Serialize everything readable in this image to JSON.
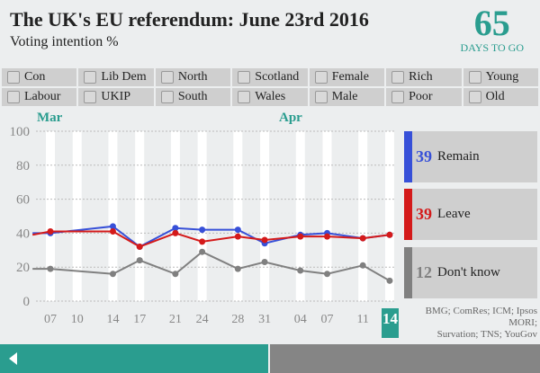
{
  "header": {
    "title": "The UK's EU referendum: June 23rd 2016",
    "subtitle": "Voting intention %",
    "days_number": "65",
    "days_label": "DAYS TO GO"
  },
  "filters": [
    "Con",
    "Lib Dem",
    "North",
    "Scotland",
    "Female",
    "Rich",
    "Young",
    "Labour",
    "UKIP",
    "South",
    "Wales",
    "Male",
    "Poor",
    "Old"
  ],
  "colors": {
    "accent": "#2a9d8f",
    "remain": "#3750d8",
    "leave": "#d41a1a",
    "dont_know": "#808080"
  },
  "chart_data": {
    "type": "line",
    "months": [
      {
        "label": "Mar",
        "date": "2016-03-07"
      },
      {
        "label": "Apr",
        "date": "2016-04-01"
      }
    ],
    "x_ticks": [
      {
        "date": "2016-03-07",
        "label": "07"
      },
      {
        "date": "2016-03-10",
        "label": "10"
      },
      {
        "date": "2016-03-14",
        "label": "14"
      },
      {
        "date": "2016-03-17",
        "label": "17"
      },
      {
        "date": "2016-03-21",
        "label": "21"
      },
      {
        "date": "2016-03-24",
        "label": "24"
      },
      {
        "date": "2016-03-28",
        "label": "28"
      },
      {
        "date": "2016-03-31",
        "label": "31"
      },
      {
        "date": "2016-04-04",
        "label": "04"
      },
      {
        "date": "2016-04-07",
        "label": "07"
      },
      {
        "date": "2016-04-11",
        "label": "11"
      },
      {
        "date": "2016-04-14",
        "label": "14"
      }
    ],
    "y_ticks": [
      0,
      20,
      40,
      60,
      80,
      100
    ],
    "ylim": [
      0,
      100
    ],
    "x": [
      "2016-03-05",
      "2016-03-07",
      "2016-03-14",
      "2016-03-17",
      "2016-03-21",
      "2016-03-24",
      "2016-03-28",
      "2016-03-31",
      "2016-04-04",
      "2016-04-07",
      "2016-04-11",
      "2016-04-14"
    ],
    "series": [
      {
        "name": "Remain",
        "color": "#3750d8",
        "values": [
          40,
          40,
          44,
          32,
          43,
          42,
          42,
          34,
          39,
          40,
          37,
          39
        ]
      },
      {
        "name": "Leave",
        "color": "#d41a1a",
        "values": [
          39,
          41,
          41,
          32,
          40,
          35,
          38,
          36,
          38,
          38,
          37,
          39
        ]
      },
      {
        "name": "Don't know",
        "color": "#808080",
        "values": [
          19,
          19,
          16,
          24,
          16,
          29,
          19,
          23,
          18,
          16,
          21,
          12
        ]
      }
    ],
    "grid": true
  },
  "legend": [
    {
      "value": "39",
      "label": "Remain"
    },
    {
      "value": "39",
      "label": "Leave"
    },
    {
      "value": "12",
      "label": "Don't know"
    }
  ],
  "current_day": "14",
  "source": {
    "line1": "BMG; ComRes; ICM; Ipsos MORI;",
    "line2": "Survation; TNS; YouGov"
  }
}
